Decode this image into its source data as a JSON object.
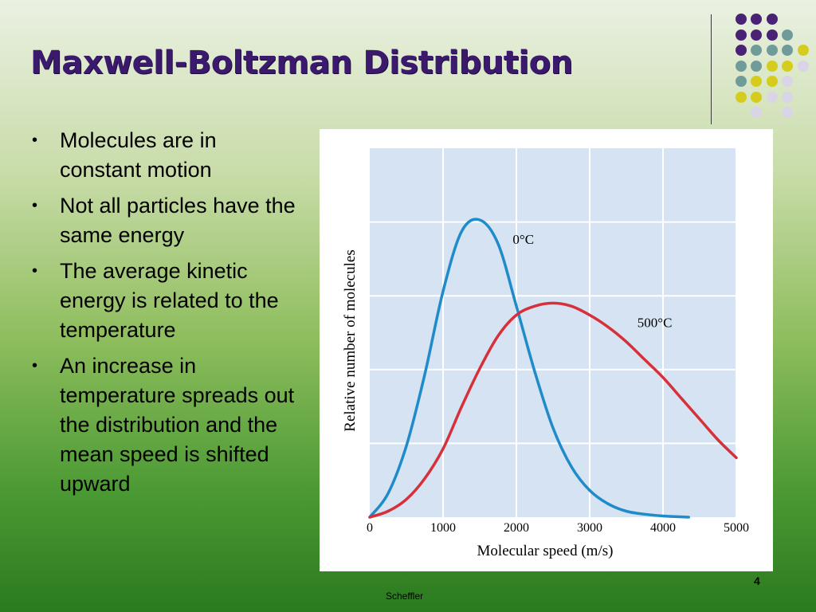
{
  "slide": {
    "title": "Maxwell-Boltzman Distribution",
    "bullets": [
      "Molecules are in constant motion",
      "Not all particles have the same energy",
      "The average kinetic energy is related to the temperature",
      "An increase in temperature spreads out the distribution and the mean speed is shifted upward"
    ],
    "page_number": "4",
    "footer": "Scheffler",
    "colors": {
      "title": "#3b1a6e",
      "dot_purple": "#4a2275",
      "dot_teal": "#6f9c9a",
      "dot_yellow": "#d6cc1e",
      "dot_lilac": "#d9d4e6"
    }
  },
  "chart_data": {
    "type": "line",
    "xlabel": "Molecular speed (m/s)",
    "ylabel": "Relative number of molecules",
    "x_ticks": [
      "0",
      "1000",
      "2000",
      "3000",
      "4000",
      "5000"
    ],
    "xlim": [
      0,
      5000
    ],
    "ylim": [
      0,
      1
    ],
    "grid": true,
    "series": [
      {
        "name": "0°C",
        "color": "#1f8bc9",
        "x": [
          0,
          250,
          500,
          750,
          1000,
          1250,
          1500,
          1750,
          2000,
          2250,
          2500,
          2750,
          3000,
          3250,
          3500,
          3750,
          4000,
          4250,
          4350
        ],
        "y": [
          0,
          0.08,
          0.24,
          0.48,
          0.76,
          0.96,
          1.0,
          0.92,
          0.71,
          0.49,
          0.3,
          0.17,
          0.09,
          0.045,
          0.02,
          0.01,
          0.004,
          0.001,
          0
        ]
      },
      {
        "name": "500°C",
        "color": "#d6303a",
        "x": [
          0,
          250,
          500,
          750,
          1000,
          1250,
          1500,
          1750,
          2000,
          2250,
          2500,
          2750,
          3000,
          3250,
          3500,
          3750,
          4000,
          4250,
          4500,
          4750,
          5000
        ],
        "y": [
          0,
          0.02,
          0.06,
          0.13,
          0.23,
          0.37,
          0.5,
          0.61,
          0.68,
          0.71,
          0.72,
          0.71,
          0.68,
          0.64,
          0.59,
          0.53,
          0.47,
          0.4,
          0.33,
          0.26,
          0.2
        ]
      }
    ]
  }
}
